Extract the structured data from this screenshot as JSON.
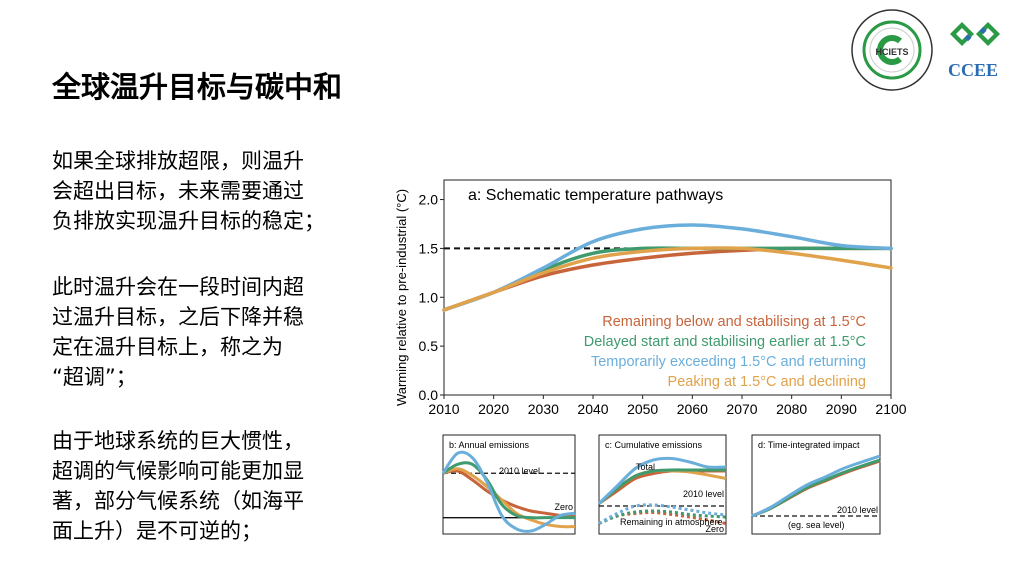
{
  "slide": {
    "title": "全球温升目标与碳中和",
    "paragraphs": [
      [
        "如果全球排放超限，则温升",
        "会超出目标，未来需要通过",
        "负排放实现温升目标的稳定；"
      ],
      [
        "此时温升会在一段时间内超",
        "过温升目标，之后下降并稳",
        "定在温升目标上，称之为",
        "“超调”；"
      ],
      [
        "由于地球系统的巨大惯性，",
        "超调的气候影响可能更加显",
        "著，部分气候系统（如海平",
        "面上升）是不可逆的；"
      ]
    ],
    "logos": {
      "left_text": "HCIETS",
      "right_text": "CCEE"
    }
  },
  "colors": {
    "red": "#c8643a",
    "green": "#3f9a6e",
    "blue": "#6aaedb",
    "yellow": "#e0a24a"
  },
  "chart_data": [
    {
      "type": "line",
      "title": "a: Schematic temperature pathways",
      "ylabel": "Warming relative to pre-industrial (°C)",
      "xlabel": "",
      "xlim": [
        2010,
        2100
      ],
      "ylim": [
        0,
        2.2
      ],
      "xticks": [
        "2010",
        "2020",
        "2030",
        "2040",
        "2050",
        "2060",
        "2070",
        "2080",
        "2090",
        "2100"
      ],
      "yticks": [
        "0.0",
        "0.5",
        "1.0",
        "1.5",
        "2.0"
      ],
      "reference_line": {
        "y": 1.5,
        "x_end": 2047,
        "style": "dashed"
      },
      "x": [
        2010,
        2020,
        2030,
        2040,
        2050,
        2060,
        2070,
        2080,
        2090,
        2100
      ],
      "series": [
        {
          "name": "Remaining below and stabilising at 1.5°C",
          "color": "red",
          "values": [
            0.87,
            1.05,
            1.22,
            1.33,
            1.4,
            1.45,
            1.48,
            1.5,
            1.5,
            1.5
          ]
        },
        {
          "name": "Delayed start and stabilising earlier at 1.5°C",
          "color": "green",
          "values": [
            0.87,
            1.05,
            1.28,
            1.45,
            1.5,
            1.5,
            1.5,
            1.5,
            1.5,
            1.5
          ]
        },
        {
          "name": "Temporarily exceeding 1.5°C and returning",
          "color": "blue",
          "values": [
            0.87,
            1.05,
            1.3,
            1.57,
            1.7,
            1.74,
            1.7,
            1.62,
            1.53,
            1.5
          ]
        },
        {
          "name": "Peaking at 1.5°C and declining",
          "color": "yellow",
          "values": [
            0.87,
            1.05,
            1.25,
            1.4,
            1.47,
            1.5,
            1.5,
            1.45,
            1.38,
            1.3
          ]
        }
      ],
      "legend": "bottom-right"
    },
    {
      "type": "line",
      "title": "b: Annual emissions",
      "annotations": [
        "2010 level",
        "Zero"
      ],
      "ylim": [
        -0.3,
        1.5
      ],
      "ref_lines": [
        1,
        0
      ],
      "series": [
        {
          "color": "red",
          "values": [
            1,
            1.05,
            0.85,
            0.6,
            0.4,
            0.25,
            0.15,
            0.1,
            0.05,
            0.02
          ]
        },
        {
          "color": "yellow",
          "values": [
            1,
            1.1,
            0.95,
            0.7,
            0.4,
            0.1,
            -0.05,
            -0.15,
            -0.2,
            -0.2
          ]
        },
        {
          "color": "green",
          "values": [
            1,
            1.2,
            1.2,
            0.85,
            0.3,
            0.05,
            0,
            0,
            0,
            0
          ]
        },
        {
          "color": "blue",
          "values": [
            1,
            1.45,
            1.35,
            0.8,
            0.05,
            -0.25,
            -0.3,
            -0.15,
            0.05,
            0.1
          ]
        }
      ]
    },
    {
      "type": "line",
      "title": "c: Cumulative emissions",
      "annotations": [
        "Total",
        "2010 level",
        "Remaining in atmosphere",
        "Zero"
      ],
      "ylim": [
        0,
        1.6
      ],
      "ref_lines": [
        0.5
      ],
      "series": [
        {
          "color": "red",
          "values": [
            0.55,
            0.8,
            1.05,
            1.15,
            1.2,
            1.2,
            1.2,
            1.2
          ]
        },
        {
          "color": "yellow",
          "values": [
            0.55,
            0.85,
            1.1,
            1.2,
            1.2,
            1.18,
            1.12,
            1.05
          ]
        },
        {
          "color": "green",
          "values": [
            0.55,
            0.85,
            1.1,
            1.2,
            1.22,
            1.22,
            1.22,
            1.22
          ]
        },
        {
          "color": "blue",
          "values": [
            0.55,
            0.9,
            1.25,
            1.42,
            1.45,
            1.38,
            1.28,
            1.28
          ]
        },
        {
          "color": "red",
          "dotted": true,
          "values": [
            0.15,
            0.3,
            0.35,
            0.37,
            0.33,
            0.28,
            0.22,
            0.15
          ]
        },
        {
          "color": "green",
          "dotted": true,
          "values": [
            0.15,
            0.3,
            0.38,
            0.4,
            0.38,
            0.33,
            0.3,
            0.28
          ]
        },
        {
          "color": "blue",
          "dotted": true,
          "values": [
            0.15,
            0.35,
            0.5,
            0.52,
            0.48,
            0.42,
            0.36,
            0.32
          ]
        }
      ]
    },
    {
      "type": "line",
      "title": "d: Time-integrated impact",
      "annotations": [
        "2010 level",
        "(eg. sea level)"
      ],
      "ylim": [
        0,
        1.6
      ],
      "ref_lines": [
        0.3
      ],
      "series": [
        {
          "color": "red",
          "values": [
            0.3,
            0.45,
            0.65,
            0.85,
            1.0,
            1.15,
            1.28,
            1.4
          ]
        },
        {
          "color": "green",
          "values": [
            0.3,
            0.45,
            0.66,
            0.87,
            1.02,
            1.17,
            1.3,
            1.42
          ]
        },
        {
          "color": "blue",
          "values": [
            0.3,
            0.47,
            0.7,
            0.92,
            1.08,
            1.25,
            1.38,
            1.5
          ]
        }
      ]
    }
  ]
}
